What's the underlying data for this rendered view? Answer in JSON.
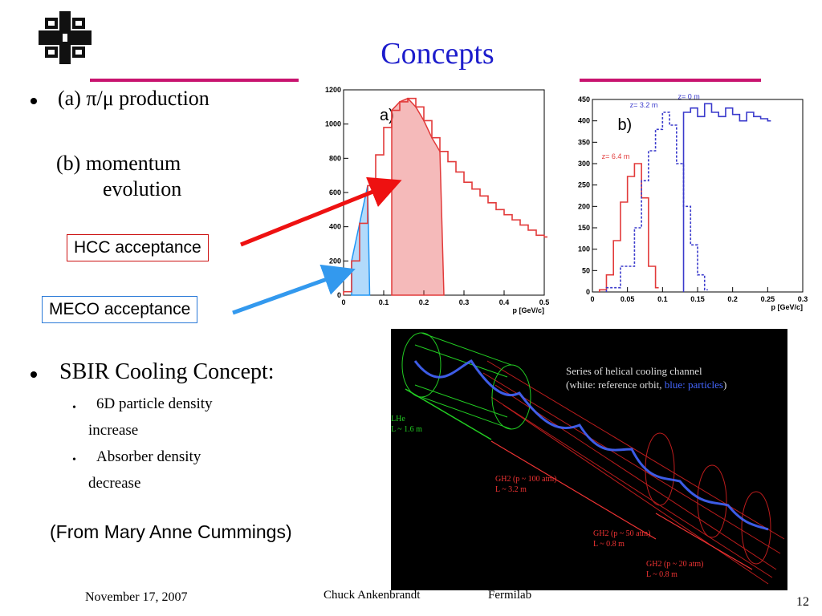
{
  "slide": {
    "title": "Concepts",
    "rule_color": "#c8136f",
    "title_color": "#1c1ccc"
  },
  "bullets": {
    "item1": "(a) π/μ production",
    "item2_line1": "(b) momentum",
    "item2_line2": "evolution",
    "sbir": "SBIR Cooling Concept:",
    "sub1_line1": "6D particle density",
    "sub1_line2": "increase",
    "sub2_line1": "Absorber density",
    "sub2_line2": "decrease"
  },
  "callouts": {
    "hcc": "HCC acceptance",
    "meco": "MECO acceptance",
    "hcc_color": "#ee1111",
    "meco_color": "#3399ee"
  },
  "credit": "(From Mary Anne Cummings)",
  "footer": {
    "date": "November 17, 2007",
    "author": "Chuck Ankenbrandt",
    "org": "Fermilab",
    "page": "12"
  },
  "chart_data": [
    {
      "type": "bar",
      "panel_label": "a)",
      "xlabel": "p [GeV/c]",
      "xlim": [
        0,
        0.5
      ],
      "ylim": [
        0,
        1200
      ],
      "x_ticks": [
        "0",
        "0.1",
        "0.2",
        "0.3",
        "0.4",
        "0.5"
      ],
      "y_ticks": [
        "0",
        "200",
        "400",
        "600",
        "800",
        "1000",
        "1200"
      ],
      "series": [
        {
          "color": "#e23a3a",
          "x": [
            0.0,
            0.02,
            0.04,
            0.06,
            0.08,
            0.1,
            0.12,
            0.14,
            0.16,
            0.18,
            0.2,
            0.22,
            0.24,
            0.26,
            0.28,
            0.3,
            0.32,
            0.34,
            0.36,
            0.38,
            0.4,
            0.42,
            0.44,
            0.46,
            0.48,
            0.5
          ],
          "values": [
            20,
            200,
            420,
            640,
            820,
            980,
            1080,
            1130,
            1150,
            1100,
            1020,
            920,
            840,
            780,
            720,
            660,
            620,
            580,
            540,
            500,
            470,
            440,
            410,
            380,
            350,
            340
          ]
        }
      ],
      "shaded_ranges": [
        {
          "from": 0.12,
          "to": 0.25,
          "color": "#e23a3a"
        },
        {
          "from": 0.02,
          "to": 0.065,
          "color": "#2196f3"
        }
      ]
    },
    {
      "type": "line",
      "panel_label": "b)",
      "xlabel": "p [GeV/c]",
      "xlim": [
        0,
        0.3
      ],
      "ylim": [
        0,
        450
      ],
      "x_ticks": [
        "0",
        "0.05",
        "0.1",
        "0.15",
        "0.2",
        "0.25",
        "0.3"
      ],
      "y_ticks": [
        "0",
        "50",
        "100",
        "150",
        "200",
        "250",
        "300",
        "350",
        "400",
        "450"
      ],
      "series": [
        {
          "name": "z= 6.4 m",
          "color": "#e23a3a",
          "x": [
            0.01,
            0.02,
            0.03,
            0.04,
            0.05,
            0.06,
            0.07,
            0.08,
            0.09
          ],
          "values": [
            5,
            40,
            120,
            210,
            270,
            300,
            220,
            60,
            10
          ]
        },
        {
          "name": "z= 3.2 m",
          "color": "#3a3acc",
          "x": [
            0.02,
            0.04,
            0.06,
            0.07,
            0.08,
            0.09,
            0.1,
            0.11,
            0.12,
            0.13,
            0.14,
            0.15,
            0.16
          ],
          "values": [
            10,
            60,
            150,
            260,
            330,
            380,
            420,
            390,
            300,
            200,
            110,
            40,
            5
          ]
        },
        {
          "name": "z= 0 m",
          "color": "#3a3acc",
          "x": [
            0.13,
            0.14,
            0.15,
            0.16,
            0.17,
            0.18,
            0.19,
            0.2,
            0.21,
            0.22,
            0.23,
            0.24,
            0.25
          ],
          "values": [
            420,
            430,
            410,
            440,
            420,
            410,
            430,
            415,
            400,
            420,
            410,
            405,
            400
          ]
        }
      ]
    }
  ],
  "figure": {
    "caption_line1": "Series of helical cooling channel",
    "caption_line2_a": "(white: reference orbit, ",
    "caption_line2_b": "blue: particles",
    "caption_line2_c": ")",
    "seg1_line1": "LHe",
    "seg1_line2": "L ~ 1.6 m",
    "seg2_line1": "GH2 (p ~ 100 atm)",
    "seg2_line2": "L ~ 3.2 m",
    "seg3_line1": "GH2 (p ~ 50 atm)",
    "seg3_line2": "L ~ 0.8 m",
    "seg4_line1": "GH2 (p ~ 20 atm)",
    "seg4_line2": "L ~ 0.8 m"
  }
}
